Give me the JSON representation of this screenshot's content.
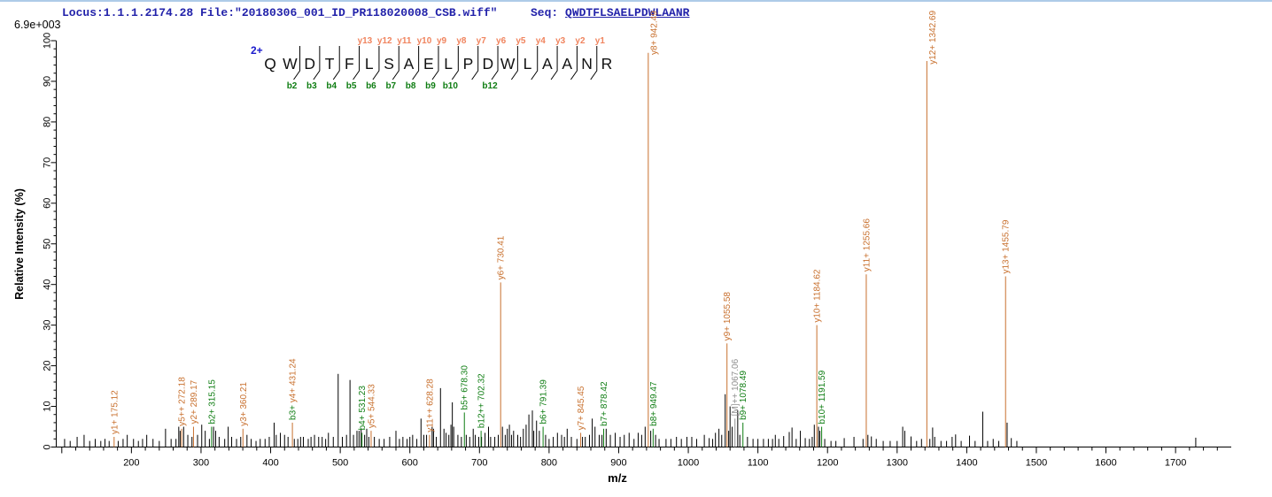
{
  "header": {
    "locus_file": "Locus:1.1.1.2174.28 File:\"20180306_001_ID_PR118020008_CSB.wiff\"",
    "seq_label": "Seq:",
    "seq_value": "QWDTFLSAELPDWLAANR",
    "intensity_scale": "6.9e+003"
  },
  "peptide": {
    "charge": "2+",
    "residues": [
      "Q",
      "W",
      "D",
      "T",
      "F",
      "L",
      "S",
      "A",
      "E",
      "L",
      "P",
      "D",
      "W",
      "L",
      "A",
      "A",
      "N",
      "R"
    ],
    "fragments": [
      {
        "after": 1,
        "b": "b2"
      },
      {
        "after": 2,
        "b": "b3"
      },
      {
        "after": 3,
        "b": "b4"
      },
      {
        "after": 4,
        "b": "b5",
        "y": "y13"
      },
      {
        "after": 5,
        "b": "b6",
        "y": "y12"
      },
      {
        "after": 6,
        "b": "b7",
        "y": "y11"
      },
      {
        "after": 7,
        "b": "b8",
        "y": "y10"
      },
      {
        "after": 8,
        "b": "b9",
        "y": "y9"
      },
      {
        "after": 9,
        "b": "b10",
        "y": "y8"
      },
      {
        "after": 10,
        "y": "y7"
      },
      {
        "after": 11,
        "b": "b12",
        "y": "y6"
      },
      {
        "after": 12,
        "y": "y5"
      },
      {
        "after": 13,
        "y": "y4"
      },
      {
        "after": 14,
        "y": "y3"
      },
      {
        "after": 15,
        "y": "y2"
      },
      {
        "after": 16,
        "y": "y1"
      }
    ]
  },
  "chart_data": {
    "type": "bar",
    "subtype": "MS2 centroid spectrum",
    "xlabel": "m/z",
    "ylabel": "Relative  Intensity (%)",
    "x_range": [
      92,
      1780
    ],
    "y_range": [
      0,
      100
    ],
    "x_major_ticks": [
      100,
      200,
      300,
      400,
      500,
      600,
      700,
      800,
      900,
      1000,
      1100,
      1200,
      1300,
      1400,
      1500,
      1600,
      1700
    ],
    "x_labeled_ticks": [
      200,
      300,
      400,
      500,
      600,
      700,
      800,
      900,
      1000,
      1100,
      1200,
      1300,
      1400,
      1500,
      1600,
      1700
    ],
    "x_minor_step": 20,
    "y_major_ticks": [
      0,
      10,
      20,
      30,
      40,
      50,
      60,
      70,
      80,
      90,
      100
    ],
    "y_minor_step": 2,
    "grid": false,
    "labeled_peaks": [
      {
        "label": "y1+ 175.12",
        "mz": 175.12,
        "intensity": 2.5,
        "ion": "y"
      },
      {
        "label": "y5++ 272.18",
        "mz": 272.18,
        "intensity": 4.5,
        "ion": "y"
      },
      {
        "label": "y2+ 289.17",
        "mz": 289.17,
        "intensity": 5,
        "ion": "y"
      },
      {
        "label": "b2+ 315.15",
        "mz": 315.15,
        "intensity": 5,
        "ion": "b"
      },
      {
        "label": "y3+ 360.21",
        "mz": 360.21,
        "intensity": 4.5,
        "ion": "y"
      },
      {
        "label": "b3+ y4+ 431.24",
        "mz": 431.24,
        "intensity": 6,
        "ion": "y",
        "parts": [
          {
            "text": "b3+ ",
            "ion": "b"
          },
          {
            "text": "y4+ 431.24",
            "ion": "y"
          }
        ]
      },
      {
        "label": "b4+ 531.23",
        "mz": 531.23,
        "intensity": 3.5,
        "ion": "b"
      },
      {
        "label": "y5+ 544.33",
        "mz": 544.33,
        "intensity": 4,
        "ion": "y"
      },
      {
        "label": "y11++ 628.28",
        "mz": 628.28,
        "intensity": 3,
        "ion": "y"
      },
      {
        "label": "b5+ 678.30",
        "mz": 678.3,
        "intensity": 8.5,
        "ion": "b"
      },
      {
        "label": "b12++ 702.32",
        "mz": 702.32,
        "intensity": 4,
        "ion": "b"
      },
      {
        "label": "y6+ 730.41",
        "mz": 730.41,
        "intensity": 40.5,
        "ion": "y"
      },
      {
        "label": "b6+ 791.39",
        "mz": 791.39,
        "intensity": 5,
        "ion": "b"
      },
      {
        "label": "y7+ 845.45",
        "mz": 845.45,
        "intensity": 3.5,
        "ion": "y"
      },
      {
        "label": "b7+ 878.42",
        "mz": 878.42,
        "intensity": 4.5,
        "ion": "b"
      },
      {
        "label": "y8+ 942.49",
        "mz": 942.49,
        "intensity": 97,
        "ion": "y"
      },
      {
        "label": "b8+ 949.47",
        "mz": 949.47,
        "intensity": 4.5,
        "ion": "b"
      },
      {
        "label": "y9+ 1055.58",
        "mz": 1055.58,
        "intensity": 25.5,
        "ion": "y"
      },
      {
        "label": "[M]++ 1067.06",
        "mz": 1067.06,
        "intensity": 7,
        "ion": "M"
      },
      {
        "label": "b9+ 1078.49",
        "mz": 1078.49,
        "intensity": 6,
        "ion": "b"
      },
      {
        "label": "y10+ 1184.62",
        "mz": 1184.62,
        "intensity": 30,
        "ion": "y"
      },
      {
        "label": "b10+ 1191.59",
        "mz": 1191.59,
        "intensity": 5,
        "ion": "b"
      },
      {
        "label": "y11+ 1255.66",
        "mz": 1255.66,
        "intensity": 42.5,
        "ion": "y"
      },
      {
        "label": "y12+ 1342.69",
        "mz": 1342.69,
        "intensity": 95,
        "ion": "y"
      },
      {
        "label": "y13+ 1455.79",
        "mz": 1455.79,
        "intensity": 42,
        "ion": "y"
      }
    ],
    "noise_peaks": [
      [
        104,
        2
      ],
      [
        112,
        1.5
      ],
      [
        122,
        2.5
      ],
      [
        132,
        3
      ],
      [
        140,
        1.5
      ],
      [
        148,
        2
      ],
      [
        156,
        1.5
      ],
      [
        162,
        2
      ],
      [
        168,
        1.5
      ],
      [
        181,
        1.5
      ],
      [
        188,
        2
      ],
      [
        194,
        3
      ],
      [
        203,
        2
      ],
      [
        210,
        1.5
      ],
      [
        216,
        2
      ],
      [
        222,
        3
      ],
      [
        231,
        2
      ],
      [
        240,
        1.5
      ],
      [
        249,
        4.5
      ],
      [
        257,
        2
      ],
      [
        264,
        2
      ],
      [
        268,
        5
      ],
      [
        270,
        4
      ],
      [
        275,
        5
      ],
      [
        281,
        3
      ],
      [
        287,
        2.5
      ],
      [
        295,
        3
      ],
      [
        301,
        5.5
      ],
      [
        306,
        4
      ],
      [
        312,
        2
      ],
      [
        318,
        5
      ],
      [
        321,
        4
      ],
      [
        326,
        2.5
      ],
      [
        334,
        2
      ],
      [
        339,
        5
      ],
      [
        344,
        2.5
      ],
      [
        351,
        2
      ],
      [
        357,
        2.5
      ],
      [
        366,
        3
      ],
      [
        372,
        2
      ],
      [
        379,
        1.5
      ],
      [
        385,
        2
      ],
      [
        392,
        2
      ],
      [
        398,
        2.5
      ],
      [
        405,
        6
      ],
      [
        408,
        3
      ],
      [
        414,
        3.5
      ],
      [
        420,
        3
      ],
      [
        425,
        2.5
      ],
      [
        434,
        2
      ],
      [
        439,
        2
      ],
      [
        443,
        2.5
      ],
      [
        447,
        2.5
      ],
      [
        454,
        2
      ],
      [
        458,
        2.5
      ],
      [
        463,
        3
      ],
      [
        469,
        2.5
      ],
      [
        474,
        2.5
      ],
      [
        479,
        2
      ],
      [
        483,
        3.5
      ],
      [
        490,
        2.5
      ],
      [
        497,
        18
      ],
      [
        503,
        2.5
      ],
      [
        509,
        3
      ],
      [
        514,
        16.5
      ],
      [
        519,
        3
      ],
      [
        524,
        4
      ],
      [
        527,
        4
      ],
      [
        530,
        4.5
      ],
      [
        535,
        3
      ],
      [
        538,
        4.5
      ],
      [
        541,
        2.5
      ],
      [
        549,
        2.5
      ],
      [
        556,
        2
      ],
      [
        563,
        2
      ],
      [
        571,
        2.5
      ],
      [
        580,
        4
      ],
      [
        585,
        2
      ],
      [
        590,
        2.5
      ],
      [
        596,
        2
      ],
      [
        600,
        2.5
      ],
      [
        604,
        3
      ],
      [
        610,
        2
      ],
      [
        616,
        7
      ],
      [
        620,
        3
      ],
      [
        624,
        3
      ],
      [
        632,
        5
      ],
      [
        634,
        4.5
      ],
      [
        638,
        2.5
      ],
      [
        644,
        14.5
      ],
      [
        649,
        4.5
      ],
      [
        652,
        3.5
      ],
      [
        656,
        3
      ],
      [
        659,
        5.5
      ],
      [
        661,
        11
      ],
      [
        663,
        5
      ],
      [
        669,
        3
      ],
      [
        674,
        2.5
      ],
      [
        681,
        3
      ],
      [
        686,
        2.5
      ],
      [
        691,
        4.5
      ],
      [
        694,
        3
      ],
      [
        699,
        2.5
      ],
      [
        703,
        2.5
      ],
      [
        708,
        3.5
      ],
      [
        713,
        5
      ],
      [
        716,
        2.5
      ],
      [
        722,
        2.5
      ],
      [
        727,
        3
      ],
      [
        733,
        5
      ],
      [
        737,
        3
      ],
      [
        740,
        4.5
      ],
      [
        743,
        5.5
      ],
      [
        746,
        3
      ],
      [
        749,
        4
      ],
      [
        755,
        3
      ],
      [
        759,
        2.5
      ],
      [
        763,
        4.5
      ],
      [
        767,
        5.5
      ],
      [
        771,
        8
      ],
      [
        776,
        9
      ],
      [
        778,
        4
      ],
      [
        782,
        6.5
      ],
      [
        786,
        4
      ],
      [
        795,
        3
      ],
      [
        800,
        2
      ],
      [
        806,
        2.5
      ],
      [
        812,
        3.5
      ],
      [
        818,
        3
      ],
      [
        822,
        2.5
      ],
      [
        826,
        4.5
      ],
      [
        832,
        2.5
      ],
      [
        840,
        2
      ],
      [
        848,
        2.5
      ],
      [
        852,
        2.5
      ],
      [
        858,
        3
      ],
      [
        862,
        7
      ],
      [
        866,
        5
      ],
      [
        872,
        3
      ],
      [
        876,
        3
      ],
      [
        882,
        4.5
      ],
      [
        888,
        3
      ],
      [
        895,
        3.5
      ],
      [
        902,
        2.5
      ],
      [
        908,
        3
      ],
      [
        915,
        3.5
      ],
      [
        922,
        2
      ],
      [
        928,
        3.5
      ],
      [
        933,
        3
      ],
      [
        938,
        5
      ],
      [
        946,
        4
      ],
      [
        953,
        3
      ],
      [
        958,
        2
      ],
      [
        968,
        2
      ],
      [
        975,
        2
      ],
      [
        983,
        2.5
      ],
      [
        990,
        2
      ],
      [
        998,
        2.5
      ],
      [
        1005,
        2.5
      ],
      [
        1012,
        2
      ],
      [
        1023,
        3
      ],
      [
        1030,
        2.2
      ],
      [
        1035,
        2
      ],
      [
        1039,
        3.5
      ],
      [
        1044,
        4.5
      ],
      [
        1048,
        3
      ],
      [
        1053,
        13
      ],
      [
        1058,
        4
      ],
      [
        1060,
        10
      ],
      [
        1063,
        5
      ],
      [
        1071,
        9
      ],
      [
        1074,
        3
      ],
      [
        1085,
        2.5
      ],
      [
        1093,
        2
      ],
      [
        1100,
        2
      ],
      [
        1108,
        2
      ],
      [
        1115,
        2
      ],
      [
        1121,
        2
      ],
      [
        1125,
        3
      ],
      [
        1130,
        2
      ],
      [
        1137,
        2.7
      ],
      [
        1145,
        3.7
      ],
      [
        1149,
        4.8
      ],
      [
        1155,
        2
      ],
      [
        1161,
        4
      ],
      [
        1168,
        2.2
      ],
      [
        1174,
        2
      ],
      [
        1178,
        2.5
      ],
      [
        1181,
        5.5
      ],
      [
        1187,
        5
      ],
      [
        1189,
        4
      ],
      [
        1196,
        2
      ],
      [
        1205,
        1.5
      ],
      [
        1212,
        1.5
      ],
      [
        1224,
        2.2
      ],
      [
        1238,
        2.5
      ],
      [
        1251,
        2
      ],
      [
        1258,
        3
      ],
      [
        1263,
        2.6
      ],
      [
        1270,
        2
      ],
      [
        1280,
        1.5
      ],
      [
        1290,
        1.5
      ],
      [
        1300,
        1.5
      ],
      [
        1308,
        5
      ],
      [
        1311,
        4
      ],
      [
        1320,
        2.6
      ],
      [
        1328,
        1.5
      ],
      [
        1335,
        2
      ],
      [
        1347,
        2
      ],
      [
        1351,
        4.8
      ],
      [
        1354,
        2.5
      ],
      [
        1363,
        1.5
      ],
      [
        1371,
        1.5
      ],
      [
        1379,
        2.5
      ],
      [
        1384,
        3.1
      ],
      [
        1392,
        1.5
      ],
      [
        1404,
        2.8
      ],
      [
        1412,
        1.5
      ],
      [
        1423,
        8.7
      ],
      [
        1430,
        1.5
      ],
      [
        1438,
        2
      ],
      [
        1446,
        1.5
      ],
      [
        1458,
        6
      ],
      [
        1464,
        2.2
      ],
      [
        1472,
        1.5
      ],
      [
        1729,
        2.3
      ]
    ]
  },
  "colors": {
    "y_ion": "#c8702e",
    "b_ion": "#0e7d12",
    "precursor": "#8f8f8f",
    "noise_peak": "#000000",
    "header_text": "#2222aa",
    "seq_y_label": "#f0845e",
    "seq_b_label": "#0e7d12",
    "charge_label": "#1a1acc",
    "axis": "#000000",
    "top_border": "#aecbe8"
  }
}
